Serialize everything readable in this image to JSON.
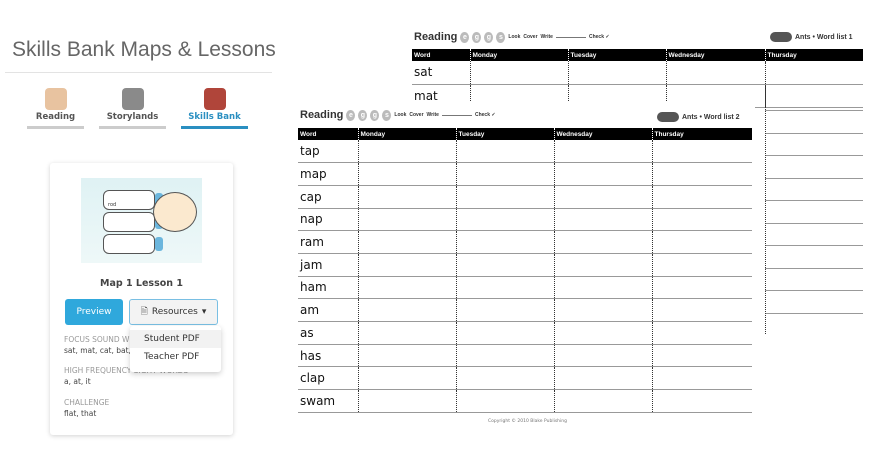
{
  "page": {
    "title": "Skills Bank Maps & Lessons"
  },
  "tabs": [
    {
      "label": "Reading",
      "icon": "girl-icon"
    },
    {
      "label": "Storylands",
      "icon": "castle-icon"
    },
    {
      "label": "Skills Bank",
      "icon": "shop-icon",
      "active": true
    }
  ],
  "lesson": {
    "title": "Map 1 Lesson 1",
    "thumb_word": "rod",
    "preview": "Preview",
    "resources": "Resources",
    "menu": [
      "Student PDF",
      "Teacher PDF"
    ],
    "focus_label": "FOCUS SOUND W",
    "focus_value": "sat, mat, cat, bat,",
    "hf_label": "HIGH FREQUENCY SIGHT WORDS",
    "hf_value": "a, at, it",
    "challenge_label": "CHALLENGE",
    "challenge_value": "flat, that"
  },
  "worksheet": {
    "brand": "Reading",
    "eggs": "eggs",
    "look": "Look",
    "cover": "Cover",
    "write": "Write",
    "check": "Check ✓",
    "columns": [
      "Word",
      "Monday",
      "Tuesday",
      "Wednesday",
      "Thursday"
    ],
    "back": {
      "list": "Ants • Word list 1",
      "words": [
        "sat",
        "mat"
      ]
    },
    "front": {
      "list": "Ants • Word list 2",
      "words": [
        "tap",
        "map",
        "cap",
        "nap",
        "ram",
        "jam",
        "ham",
        "am",
        "as",
        "has",
        "clap",
        "swam"
      ]
    },
    "copyright": "Copyright © 2010 Blake Publishing"
  },
  "colors": {
    "accent": "#2fa8dc",
    "active_tab": "#2a8fc1"
  }
}
